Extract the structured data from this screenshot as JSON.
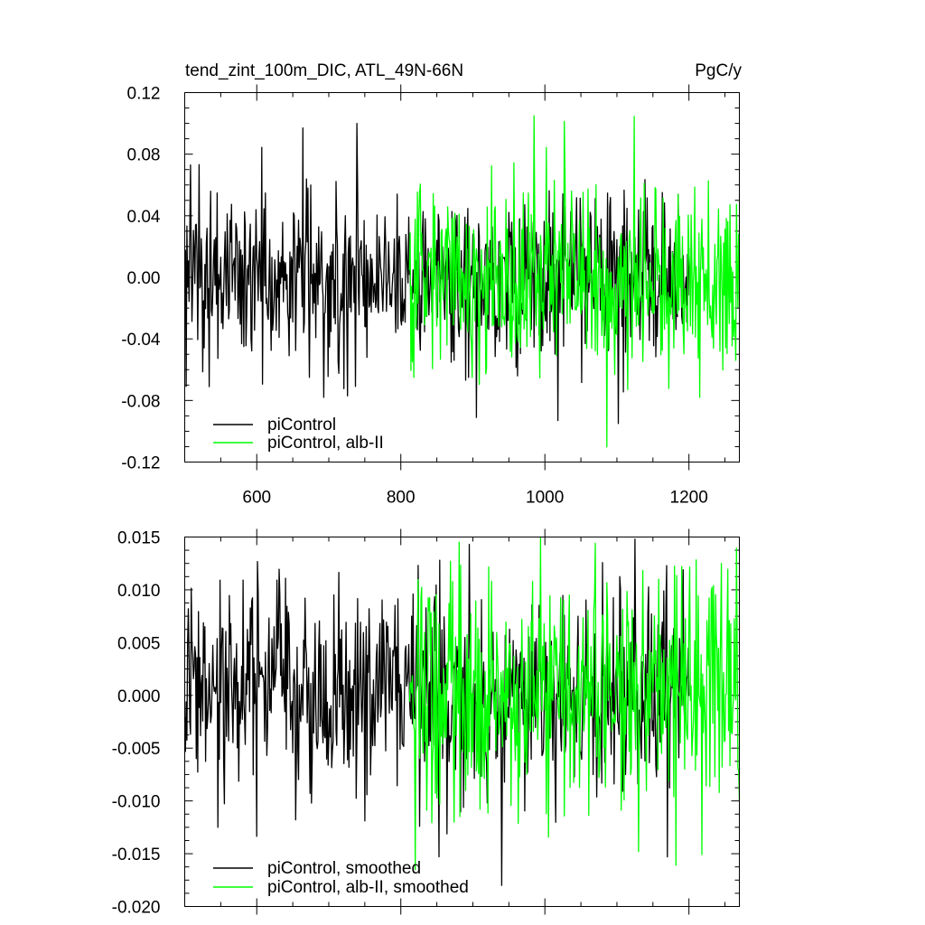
{
  "colors": {
    "piControl": "#000000",
    "alb_II": "#00ff00",
    "background": "#ffffff",
    "frame": "#000000"
  },
  "chart_data": [
    {
      "type": "line",
      "title": "tend_zint_100m_DIC, ATL_49N-66N",
      "units": "PgC/y",
      "xlabel": "",
      "ylabel": "",
      "xlim": [
        500,
        1270
      ],
      "ylim": [
        -0.12,
        0.12
      ],
      "xticks": [
        600,
        800,
        1000,
        1200
      ],
      "xtick_labels": [
        "600",
        "800",
        "1000",
        "1200"
      ],
      "yticks": [
        -0.12,
        -0.08,
        -0.04,
        0.0,
        0.04,
        0.08,
        0.12
      ],
      "ytick_labels": [
        "-0.12",
        "-0.08",
        "-0.04",
        "0.00",
        "0.04",
        "0.08",
        "0.12"
      ],
      "legend": {
        "placement": "bottom-left",
        "entries": [
          "piControl",
          "piControl, alb-II"
        ]
      },
      "series": [
        {
          "name": "piControl",
          "x_start": 500,
          "x_end": 1200,
          "mean": 0.0,
          "std": 0.028,
          "peaks": [
            [
              508,
              0.073
            ],
            [
              534,
              -0.071
            ],
            [
              664,
              0.097
            ],
            [
              693,
              -0.078
            ],
            [
              726,
              -0.077
            ],
            [
              739,
              0.1
            ],
            [
              905,
              -0.091
            ],
            [
              1018,
              -0.093
            ],
            [
              1102,
              -0.095
            ]
          ]
        },
        {
          "name": "piControl, alb-II",
          "x_start": 812,
          "x_end": 1270,
          "mean": 0.0,
          "std": 0.03,
          "peaks": [
            [
              985,
              0.105
            ],
            [
              1115,
              -0.073
            ],
            [
              1265,
              -0.054
            ]
          ]
        }
      ]
    },
    {
      "type": "line",
      "title": "",
      "xlabel": "",
      "ylabel": "",
      "xlim": [
        500,
        1270
      ],
      "ylim": [
        -0.02,
        0.015
      ],
      "xticks": [
        600,
        800,
        1000,
        1200
      ],
      "yticks": [
        -0.02,
        -0.015,
        -0.01,
        -0.005,
        0.0,
        0.005,
        0.01,
        0.015
      ],
      "ytick_labels": [
        "-0.020",
        "-0.015",
        "-0.010",
        "-0.005",
        "0.000",
        "0.005",
        "0.010",
        "0.015"
      ],
      "legend": {
        "placement": "bottom-left",
        "entries": [
          "piControl, smoothed",
          "piControl, alb-II, smoothed"
        ]
      },
      "series": [
        {
          "name": "piControl, smoothed",
          "x_start": 500,
          "x_end": 1200,
          "mean": 0.0,
          "std": 0.0048,
          "peaks": [
            [
              546,
              -0.0125
            ],
            [
              895,
              0.0143
            ],
            [
              940,
              -0.018
            ],
            [
              1125,
              0.0148
            ],
            [
              1170,
              -0.0153
            ]
          ]
        },
        {
          "name": "piControl, alb-II, smoothed",
          "x_start": 812,
          "x_end": 1270,
          "mean": 0.0,
          "std": 0.0052,
          "peaks": [
            [
              820,
              -0.0165
            ],
            [
              1070,
              0.0144
            ],
            [
              1130,
              -0.0148
            ],
            [
              1245,
              0.0125
            ]
          ]
        }
      ]
    }
  ]
}
